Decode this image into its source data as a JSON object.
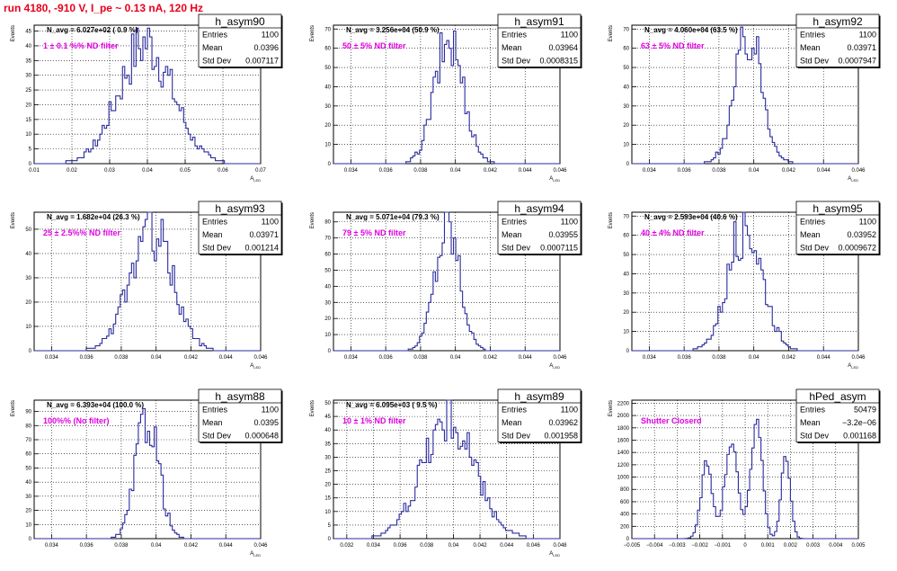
{
  "page_title": "run 4180,  -910 V, I_pe ~ 0.13 nA, 120 Hz",
  "colors": {
    "histogram": "#2b2b9e",
    "title": "#e8001c",
    "annotation": "#e000e0",
    "grid": "#000000"
  },
  "chart_data": [
    {
      "type": "histogram",
      "name": "h_asym90",
      "stats": {
        "Entries": "1100",
        "Mean": "0.0396",
        "Std Dev": "0.007117"
      },
      "navg": "N_avg = 6.027e+02 ( 0.9 %)",
      "annotation": "1 ± 0.1 %% ND filter",
      "xlabel": "A_LED",
      "ylabel": "Events",
      "xlim": [
        0.01,
        0.07
      ],
      "ylim": [
        0,
        47
      ],
      "xticks": [
        0.01,
        0.02,
        0.03,
        0.04,
        0.05,
        0.06,
        0.07
      ],
      "xticklabels": [
        "0.01",
        "0.02",
        "0.03",
        "0.04",
        "0.05",
        "0.06",
        "0.07"
      ],
      "yticks": [
        0,
        5,
        10,
        15,
        20,
        25,
        30,
        35,
        40,
        45
      ],
      "mean": 0.0396,
      "std": 0.007117,
      "peak": 41
    },
    {
      "type": "histogram",
      "name": "h_asym91",
      "stats": {
        "Entries": "1100",
        "Mean": "0.03964",
        "Std Dev": "0.0008315"
      },
      "navg": "N_avg = 3.256e+04 (50.9 %)",
      "annotation": "50 ± 5% ND filter",
      "xlabel": "A_LED",
      "ylabel": "Events",
      "xlim": [
        0.033,
        0.046
      ],
      "ylim": [
        0,
        72
      ],
      "xticks": [
        0.034,
        0.036,
        0.038,
        0.04,
        0.042,
        0.044,
        0.046
      ],
      "xticklabels": [
        "0.034",
        "0.036",
        "0.038",
        "0.04",
        "0.042",
        "0.044",
        "0.046"
      ],
      "yticks": [
        0,
        10,
        20,
        30,
        40,
        50,
        60,
        70
      ],
      "mean": 0.03964,
      "std": 0.0008315,
      "peak": 64
    },
    {
      "type": "histogram",
      "name": "h_asym92",
      "stats": {
        "Entries": "1100",
        "Mean": "0.03971",
        "Std Dev": "0.0007947"
      },
      "navg": "N_avg = 4.060e+04 (63.5 %)",
      "annotation": "63 ± 5% ND filter",
      "xlabel": "A_LED",
      "ylabel": "Events",
      "xlim": [
        0.033,
        0.046
      ],
      "ylim": [
        0,
        72
      ],
      "xticks": [
        0.034,
        0.036,
        0.038,
        0.04,
        0.042,
        0.044,
        0.046
      ],
      "xticklabels": [
        "0.034",
        "0.036",
        "0.038",
        "0.04",
        "0.042",
        "0.044",
        "0.046"
      ],
      "yticks": [
        0,
        10,
        20,
        30,
        40,
        50,
        60,
        70
      ],
      "mean": 0.03971,
      "std": 0.0007947,
      "peak": 66
    },
    {
      "type": "histogram",
      "name": "h_asym93",
      "stats": {
        "Entries": "1100",
        "Mean": "0.03971",
        "Std Dev": "0.001214"
      },
      "navg": "N_avg = 1.682e+04 (26.3 %)",
      "annotation": "25 ± 2.5%% ND filter",
      "xlabel": "A_LED",
      "ylabel": "Events",
      "xlim": [
        0.033,
        0.046
      ],
      "ylim": [
        0,
        57
      ],
      "xticks": [
        0.034,
        0.036,
        0.038,
        0.04,
        0.042,
        0.044,
        0.046
      ],
      "xticklabels": [
        "0.034",
        "0.036",
        "0.038",
        "0.04",
        "0.042",
        "0.044",
        "0.046"
      ],
      "yticks": [
        0,
        10,
        20,
        30,
        40,
        50
      ],
      "mean": 0.03971,
      "std": 0.001214,
      "peak": 50
    },
    {
      "type": "histogram",
      "name": "h_asym94",
      "stats": {
        "Entries": "1100",
        "Mean": "0.03955",
        "Std Dev": "0.0007115"
      },
      "navg": "N_avg = 5.071e+04 (79.3 %)",
      "annotation": "79 ± 5% ND filter",
      "xlabel": "A_LED",
      "ylabel": "Events",
      "xlim": [
        0.033,
        0.046
      ],
      "ylim": [
        0,
        86
      ],
      "xticks": [
        0.034,
        0.036,
        0.038,
        0.04,
        0.042,
        0.044,
        0.046
      ],
      "xticklabels": [
        "0.034",
        "0.036",
        "0.038",
        "0.04",
        "0.042",
        "0.044",
        "0.046"
      ],
      "yticks": [
        0,
        10,
        20,
        30,
        40,
        50,
        60,
        70,
        80
      ],
      "mean": 0.03955,
      "std": 0.0007115,
      "peak": 78
    },
    {
      "type": "histogram",
      "name": "h_asym95",
      "stats": {
        "Entries": "1100",
        "Mean": "0.03952",
        "Std Dev": "0.0009672"
      },
      "navg": "N_avg = 2.593e+04 (40.6 %)",
      "annotation": "40 ± 4% ND filter",
      "xlabel": "A_LED",
      "ylabel": "Events",
      "xlim": [
        0.033,
        0.046
      ],
      "ylim": [
        0,
        72
      ],
      "xticks": [
        0.034,
        0.036,
        0.038,
        0.04,
        0.042,
        0.044,
        0.046
      ],
      "xticklabels": [
        "0.034",
        "0.036",
        "0.038",
        "0.04",
        "0.042",
        "0.044",
        "0.046"
      ],
      "yticks": [
        0,
        10,
        20,
        30,
        40,
        50,
        60,
        70
      ],
      "mean": 0.03952,
      "std": 0.0009672,
      "peak": 66
    },
    {
      "type": "histogram",
      "name": "h_asym88",
      "stats": {
        "Entries": "1100",
        "Mean": "0.0395",
        "Std Dev": "0.000648"
      },
      "navg": "N_avg = 6.393e+04 (100.0 %)",
      "annotation": "100%% (No filter)",
      "xlabel": "A_LED",
      "ylabel": "Events",
      "xlim": [
        0.033,
        0.046
      ],
      "ylim": [
        0,
        98
      ],
      "xticks": [
        0.034,
        0.036,
        0.038,
        0.04,
        0.042,
        0.044,
        0.046
      ],
      "xticklabels": [
        "0.034",
        "0.036",
        "0.038",
        "0.04",
        "0.042",
        "0.044",
        "0.046"
      ],
      "yticks": [
        0,
        10,
        20,
        30,
        40,
        50,
        60,
        70,
        80,
        90
      ],
      "mean": 0.0395,
      "std": 0.000648,
      "peak": 88
    },
    {
      "type": "histogram",
      "name": "h_asym89",
      "stats": {
        "Entries": "1100",
        "Mean": "0.03962",
        "Std Dev": "0.001958"
      },
      "navg": "N_avg = 6.095e+03 ( 9.5 %)",
      "annotation": "10 ± 1% ND filter",
      "xlabel": "A_LED",
      "ylabel": "Events",
      "xlim": [
        0.031,
        0.048
      ],
      "ylim": [
        0,
        51
      ],
      "xticks": [
        0.032,
        0.034,
        0.036,
        0.038,
        0.04,
        0.042,
        0.044,
        0.046,
        0.048
      ],
      "xticklabels": [
        "0.032",
        "0.034",
        "0.036",
        "0.038",
        "0.04",
        "0.042",
        "0.044",
        "0.046",
        "0.048"
      ],
      "yticks": [
        0,
        5,
        10,
        15,
        20,
        25,
        30,
        35,
        40,
        45,
        50
      ],
      "mean": 0.03962,
      "std": 0.001958,
      "peak": 44
    },
    {
      "type": "histogram",
      "name": "hPed_asym",
      "stats": {
        "Entries": "50479",
        "Mean": "−3.2e−06",
        "Std Dev": "0.001168"
      },
      "navg": "",
      "annotation": "Shutter Closerd",
      "xlabel": "",
      "ylabel": "Events",
      "xlim": [
        -0.005,
        0.005
      ],
      "ylim": [
        0,
        2250
      ],
      "xticks": [
        -0.005,
        -0.004,
        -0.003,
        -0.002,
        -0.001,
        0,
        0.001,
        0.002,
        0.003,
        0.004,
        0.005
      ],
      "xticklabels": [
        "−0.005",
        "−0.004",
        "−0.003",
        "−0.002",
        "−0.001",
        "0",
        "0.001",
        "0.002",
        "0.003",
        "0.004",
        "0.005"
      ],
      "yticks": [
        0,
        200,
        400,
        600,
        800,
        1000,
        1200,
        1400,
        1600,
        1800,
        2000,
        2200
      ],
      "peaks": [
        {
          "center": -0.0017,
          "sigma": 0.00025,
          "height": 1200
        },
        {
          "center": -0.0006,
          "sigma": 0.00028,
          "height": 1650
        },
        {
          "center": 0.0005,
          "sigma": 0.00025,
          "height": 1950
        },
        {
          "center": 0.0018,
          "sigma": 0.0002,
          "height": 1300
        }
      ]
    }
  ]
}
